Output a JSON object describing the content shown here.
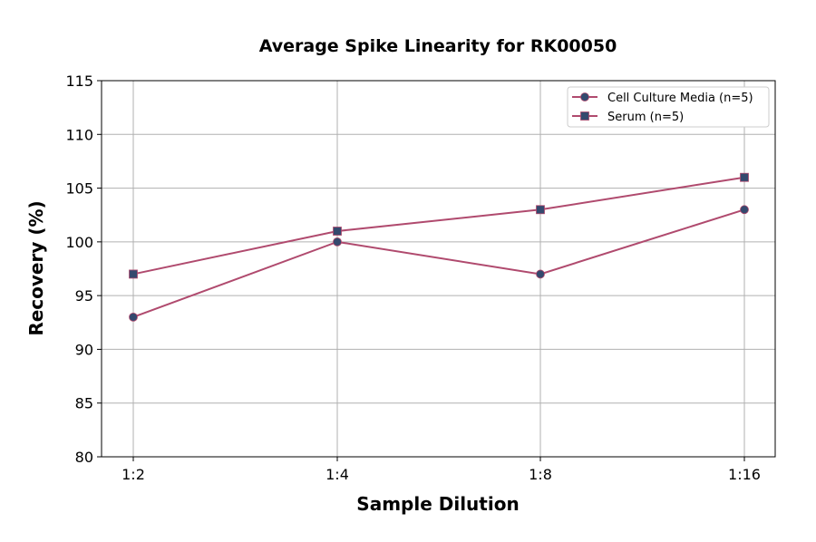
{
  "chart_data": {
    "type": "line",
    "title": "Average Spike Linearity for RK00050",
    "xlabel": "Sample Dilution",
    "ylabel": "Recovery (%)",
    "categories": [
      "1:2",
      "1:4",
      "1:8",
      "1:16"
    ],
    "ylim": [
      80,
      115
    ],
    "yticks": [
      80,
      85,
      90,
      95,
      100,
      105,
      110,
      115
    ],
    "grid": true,
    "legend_position": "top-right",
    "series": [
      {
        "name": "Cell Culture Media (n=5)",
        "marker": "circle",
        "values": [
          93,
          100,
          97,
          103
        ]
      },
      {
        "name": "Serum (n=5)",
        "marker": "square",
        "values": [
          97,
          101,
          103,
          106
        ]
      }
    ],
    "colors": {
      "line": "#b04a6e",
      "marker": "#34496e",
      "grid": "#b0b0b0"
    }
  }
}
